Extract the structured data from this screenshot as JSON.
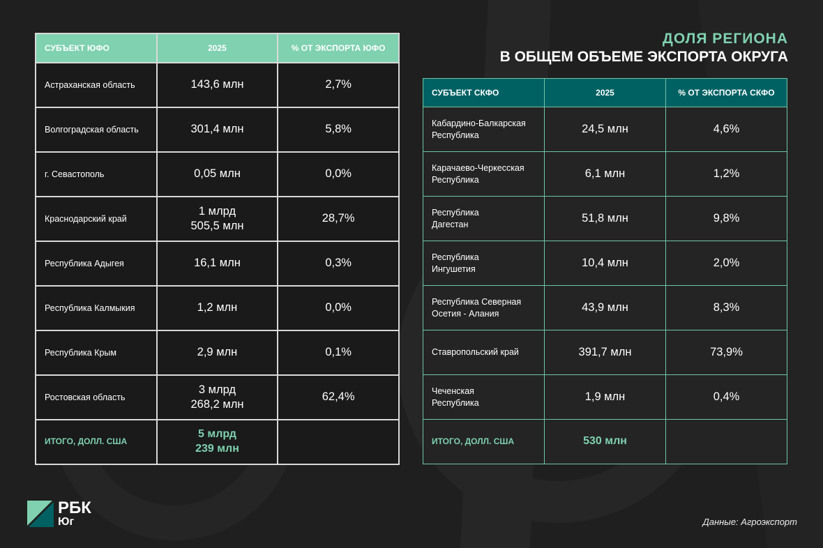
{
  "title": {
    "line1": "ДОЛЯ РЕГИОНА",
    "line2": "В ОБЩЕМ ОБЪЕМЕ ЭКСПОРТА ОКРУГА"
  },
  "table_yufo": {
    "headers": [
      "СУБЪЕКТ ЮФО",
      "2025",
      "% ОТ ЭКСПОРТА ЮФО"
    ],
    "rows": [
      [
        "Астраханская область",
        "143,6 млн",
        "2,7%"
      ],
      [
        "Волгоградская область",
        "301,4 млн",
        "5,8%"
      ],
      [
        "г. Севастополь",
        "0,05 млн",
        "0,0%"
      ],
      [
        "Краснодарский край",
        "1 млрд\n505,5 млн",
        "28,7%"
      ],
      [
        "Республика Адыгея",
        "16,1 млн",
        "0,3%"
      ],
      [
        "Республика Калмыкия",
        "1,2 млн",
        "0,0%"
      ],
      [
        "Республика Крым",
        "2,9 млн",
        "0,1%"
      ],
      [
        "Ростовская область",
        "3 млрд\n268,2 млн",
        "62,4%"
      ]
    ],
    "total": [
      "ИТОГО, ДОЛЛ. США",
      "5 млрд\n239 млн",
      ""
    ]
  },
  "table_skfo": {
    "headers": [
      "СУБЪЕКТ СКФО",
      "2025",
      "% ОТ ЭКСПОРТА СКФО"
    ],
    "rows": [
      [
        "Кабардино-Балкарская\nРеспублика",
        "24,5 млн",
        "4,6%"
      ],
      [
        "Карачаево-Черкесская\nРеспублика",
        "6,1 млн",
        "1,2%"
      ],
      [
        "Республика\nДагестан",
        "51,8 млн",
        "9,8%"
      ],
      [
        "Республика\nИнгушетия",
        "10,4 млн",
        "2,0%"
      ],
      [
        "Республика Северная\nОсетия - Алания",
        "43,9 млн",
        "8,3%"
      ],
      [
        "Ставропольский край",
        "391,7 млн",
        "73,9%"
      ],
      [
        "Чеченская\nРеспублика",
        "1,9 млн",
        "0,4%"
      ]
    ],
    "total": [
      "ИТОГО, ДОЛЛ. США",
      "530 млн",
      ""
    ]
  },
  "logo": {
    "line1": "РБК",
    "line2": "Юг"
  },
  "source": "Данные: Агроэкспорт",
  "colors": {
    "accent": "#7fd1b0",
    "teal": "#006163",
    "background": "#1f1f1f"
  }
}
